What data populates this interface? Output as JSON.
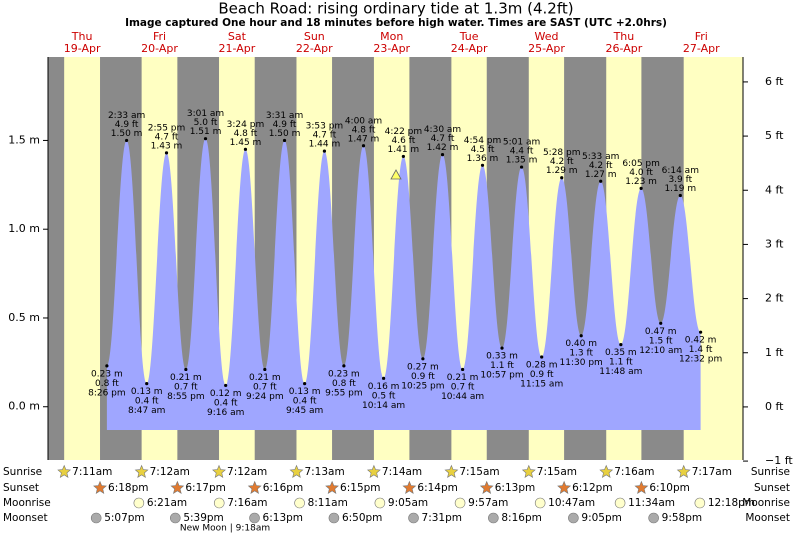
{
  "chart_data": {
    "type": "tide",
    "title": "Beach Road: rising  ordinary tide at 1.3m (4.2ft)",
    "subtitle": "Image captured One hour and 18 minutes before high water. Times are SAST (UTC +2.0hrs)",
    "ylim": [
      -0.3,
      1.97
    ],
    "yticks": [
      {
        "value": 0,
        "label": "0.0 m"
      },
      {
        "value": 0.5,
        "label": "0.5 m"
      },
      {
        "value": 1,
        "label": "1.0 m"
      },
      {
        "value": 1.5,
        "label": "1.5 m"
      }
    ],
    "y2lim": [
      -0.98,
      6.46
    ],
    "y2ticks": [
      {
        "value": -1,
        "label": "−1 ft"
      },
      {
        "value": 0,
        "label": "0 ft"
      },
      {
        "value": 1,
        "label": "1 ft"
      },
      {
        "value": 2,
        "label": "2 ft"
      },
      {
        "value": 3,
        "label": "3 ft"
      },
      {
        "value": 4,
        "label": "4 ft"
      },
      {
        "value": 5,
        "label": "5 ft"
      },
      {
        "value": 6,
        "label": "6 ft"
      }
    ],
    "tide_color": "#9fa6ff",
    "day_color": "#ffffc2",
    "night_color": "#8a8a8a",
    "row_labels": {
      "sunrise": "Sunrise",
      "sunset": "Sunset",
      "moonrise": "Moonrise",
      "moonset": "Moonset"
    },
    "annotation": "New Moon | 9:18am",
    "days": [
      {
        "name": "Thu",
        "date": "19-Apr",
        "times": [
          "8:26 pm"
        ],
        "values": [
          0.23
        ],
        "value_labels": [
          "0.23 m"
        ],
        "ft_labels": [
          "0.8 ft"
        ],
        "sunrise": "7:11am",
        "sunset": "6:18pm",
        "moonrise": null,
        "moonset": "5:07pm"
      },
      {
        "name": "Fri",
        "date": "20-Apr",
        "times": [
          "2:33 am",
          "8:47 am",
          "2:55 pm",
          "8:55 pm"
        ],
        "values": [
          1.5,
          0.13,
          1.43,
          0.21
        ],
        "value_labels": [
          "1.50 m",
          "0.13 m",
          "1.43 m",
          "0.21 m"
        ],
        "ft_labels": [
          "4.9 ft",
          "0.4 ft",
          "4.7 ft",
          "0.7 ft"
        ],
        "sunrise": "7:12am",
        "sunset": "6:17pm",
        "moonrise": "6:21am",
        "moonset": "5:39pm"
      },
      {
        "name": "Sat",
        "date": "21-Apr",
        "times": [
          "3:01 am",
          "9:16 am",
          "3:24 pm",
          "9:24 pm"
        ],
        "values": [
          1.51,
          0.12,
          1.45,
          0.21
        ],
        "value_labels": [
          "1.51 m",
          "0.12 m",
          "1.45 m",
          "0.21 m"
        ],
        "ft_labels": [
          "5.0 ft",
          "0.4 ft",
          "4.8 ft",
          "0.7 ft"
        ],
        "sunrise": "7:12am",
        "sunset": "6:16pm",
        "moonrise": "7:16am",
        "moonset": "6:13pm"
      },
      {
        "name": "Sun",
        "date": "22-Apr",
        "times": [
          "3:31 am",
          "9:45 am",
          "3:53 pm",
          "9:55 pm"
        ],
        "values": [
          1.5,
          0.13,
          1.44,
          0.23
        ],
        "value_labels": [
          "1.50 m",
          "0.13 m",
          "1.44 m",
          "0.23 m"
        ],
        "ft_labels": [
          "4.9 ft",
          "0.4 ft",
          "4.7 ft",
          "0.8 ft"
        ],
        "sunrise": "7:13am",
        "sunset": "6:15pm",
        "moonrise": "8:11am",
        "moonset": "6:50pm"
      },
      {
        "name": "Mon",
        "date": "23-Apr",
        "times": [
          "4:00 am",
          "10:14 am",
          "4:22 pm",
          "10:25 pm"
        ],
        "values": [
          1.47,
          0.16,
          1.41,
          0.27
        ],
        "value_labels": [
          "1.47 m",
          "0.16 m",
          "1.41 m",
          "0.27 m"
        ],
        "ft_labels": [
          "4.8 ft",
          "0.5 ft",
          "4.6 ft",
          "0.9 ft"
        ],
        "sunrise": "7:14am",
        "sunset": "6:14pm",
        "moonrise": "9:05am",
        "moonset": "7:31pm"
      },
      {
        "name": "Tue",
        "date": "24-Apr",
        "times": [
          "4:30 am",
          "10:44 am",
          "4:54 pm",
          "10:57 pm"
        ],
        "values": [
          1.42,
          0.21,
          1.36,
          0.33
        ],
        "value_labels": [
          "1.42 m",
          "0.21 m",
          "1.36 m",
          "0.33 m"
        ],
        "ft_labels": [
          "4.7 ft",
          "0.7 ft",
          "4.5 ft",
          "1.1 ft"
        ],
        "sunrise": "7:15am",
        "sunset": "6:13pm",
        "moonrise": "9:57am",
        "moonset": "8:16pm"
      },
      {
        "name": "Wed",
        "date": "25-Apr",
        "times": [
          "5:01 am",
          "11:15 am",
          "5:28 pm",
          "11:30 pm"
        ],
        "values": [
          1.35,
          0.28,
          1.29,
          0.4
        ],
        "value_labels": [
          "1.35 m",
          "0.28 m",
          "1.29 m",
          "0.40 m"
        ],
        "ft_labels": [
          "4.4 ft",
          "0.9 ft",
          "4.2 ft",
          "1.3 ft"
        ],
        "sunrise": "7:15am",
        "sunset": "6:12pm",
        "moonrise": "10:47am",
        "moonset": "9:05pm"
      },
      {
        "name": "Thu",
        "date": "26-Apr",
        "times": [
          "5:33 am",
          "11:48 am",
          "6:05 pm"
        ],
        "values": [
          1.27,
          0.35,
          1.23
        ],
        "value_labels": [
          "1.27 m",
          "0.35 m",
          "1.23 m"
        ],
        "ft_labels": [
          "4.2 ft",
          "1.1 ft",
          "4.0 ft"
        ],
        "sunrise": "7:16am",
        "sunset": "6:10pm",
        "moonrise": "11:34am",
        "moonset": "9:58pm"
      },
      {
        "name": "Fri",
        "date": "27-Apr",
        "times": [
          "12:10 am",
          "6:14 am",
          "12:32 pm"
        ],
        "values": [
          0.47,
          1.19,
          0.42
        ],
        "value_labels": [
          "0.47 m",
          "1.19 m",
          "0.42 m"
        ],
        "ft_labels": [
          "1.5 ft",
          "3.9 ft",
          "1.4 ft"
        ],
        "sunrise": "7:17am",
        "sunset": null,
        "moonrise": "12:18pm",
        "moonset": null
      }
    ]
  }
}
